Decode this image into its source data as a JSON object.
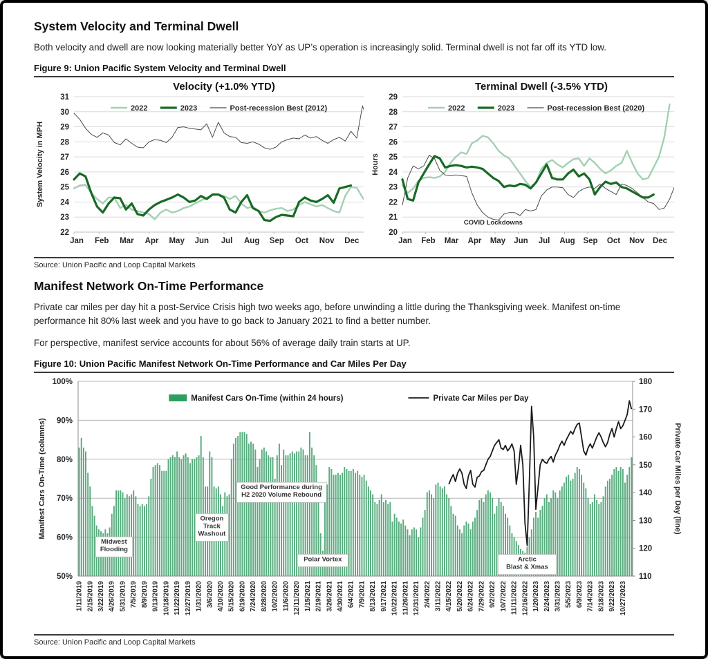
{
  "sections": {
    "velocity_dwell": {
      "title": "System Velocity and Terminal Dwell",
      "body": "Both velocity and dwell are now looking materially better YoY as UP’s operation is increasingly solid. Terminal dwell is  not far off its YTD low.",
      "figure_caption": "Figure 9: Union Pacific System Velocity and Terminal Dwell",
      "source": "Source:  Union Pacific and Loop Capital  Markets"
    },
    "manifest": {
      "title": "Manifest Network On-Time Performance",
      "body1": "Private car miles per day hit a post-Service Crisis high two weeks ago, before unwinding a little during the Thanksgiving week.  Manifest on-time performance hit 80% last week and you have to go back to January 2021 to find a better number.",
      "body2": "For perspective, manifest service accounts for about 56% of average daily train starts at UP.",
      "figure_caption": "Figure 10: Union Pacific Manifest Network On-Time Performance  and Car Miles Per Day",
      "source": "Source:  Union Pacific and Loop Capital  Markets"
    }
  },
  "colors": {
    "green_light": "#a3d0b4",
    "green_dark": "#186a24",
    "bar_green": "#58ac7e",
    "legend_green": "#2e9e60",
    "line_black": "#1a1a1a",
    "grid": "#d9d9d9",
    "axis_text": "#262626"
  },
  "chart_data": [
    {
      "type": "line",
      "title": "Velocity (+1.0% YTD)",
      "ylabel": "System Velocity in MPH",
      "ylim": [
        22,
        31
      ],
      "ytick_step": 1,
      "grid": true,
      "legend_position": "top-center",
      "x_months": [
        "Jan",
        "Feb",
        "Mar",
        "Apr",
        "May",
        "Jun",
        "Jul",
        "Aug",
        "Sep",
        "Oct",
        "Nov",
        "Dec"
      ],
      "series": [
        {
          "name": "2022",
          "color": "#a3d0b4",
          "width": 2.4,
          "values": [
            24.9,
            25.1,
            25.15,
            24.6,
            24.2,
            23.9,
            24.3,
            24.3,
            23.6,
            23.8,
            23.5,
            23.4,
            23.3,
            23.2,
            22.85,
            23.3,
            23.5,
            23.3,
            23.4,
            23.6,
            23.7,
            23.9,
            24.1,
            24.3,
            24.45,
            24.5,
            24.4,
            24.2,
            24.4,
            23.9,
            23.6,
            23.7,
            23.4,
            23.3,
            23.45,
            23.55,
            23.6,
            23.4,
            23.5,
            23.8,
            24.0,
            23.85,
            23.7,
            23.8,
            23.6,
            23.4,
            23.3,
            24.4,
            25.0,
            24.95,
            24.3,
            23.8,
            24.0
          ]
        },
        {
          "name": "2023",
          "color": "#186a24",
          "width": 3.2,
          "values": [
            25.5,
            25.9,
            25.7,
            24.6,
            23.7,
            23.3,
            23.9,
            24.3,
            24.25,
            23.5,
            23.9,
            23.2,
            23.1,
            23.5,
            23.8,
            24.0,
            24.15,
            24.3,
            24.5,
            24.3,
            24.0,
            24.1,
            24.4,
            24.2,
            24.5,
            24.5,
            24.3,
            23.5,
            23.3,
            24.0,
            24.45,
            23.6,
            23.4,
            22.8,
            22.75,
            23.0,
            23.15,
            23.1,
            23.05,
            24.0,
            24.3,
            24.1,
            24.0,
            24.2,
            24.45,
            23.95,
            24.9,
            25.0,
            25.1
          ]
        },
        {
          "name": "Post-recession Best (2012)",
          "color": "#4a4a4a",
          "width": 1,
          "values": [
            29.9,
            29.5,
            28.9,
            28.5,
            28.3,
            28.6,
            28.45,
            27.95,
            27.8,
            28.2,
            27.9,
            27.65,
            27.6,
            28.0,
            28.15,
            28.1,
            27.95,
            28.3,
            28.95,
            29.0,
            28.9,
            28.85,
            28.8,
            29.2,
            28.3,
            29.3,
            28.6,
            28.35,
            28.3,
            27.95,
            27.9,
            28.0,
            27.85,
            27.6,
            27.5,
            27.65,
            28.0,
            28.15,
            28.25,
            28.2,
            28.45,
            28.25,
            28.35,
            28.1,
            27.9,
            28.15,
            28.3,
            28.05,
            28.7,
            28.25,
            30.4,
            29.2,
            28.85
          ]
        }
      ]
    },
    {
      "type": "line",
      "title": "Terminal Dwell (-3.5% YTD)",
      "ylabel": "Hours",
      "ylim": [
        20,
        29
      ],
      "ytick_step": 1,
      "grid": true,
      "legend_position": "top-center",
      "x_months": [
        "Jan",
        "Feb",
        "Mar",
        "Apr",
        "May",
        "Jun",
        "Jul",
        "Aug",
        "Sep",
        "Oct",
        "Nov",
        "Dec"
      ],
      "annotation": {
        "text": "COVID Lockdowns",
        "x_week": 17,
        "y": 20.5
      },
      "series": [
        {
          "name": "2022",
          "color": "#a3d0b4",
          "width": 2.4,
          "values": [
            23.1,
            22.6,
            22.9,
            23.4,
            23.6,
            23.65,
            23.6,
            23.7,
            24.0,
            24.6,
            25.0,
            25.3,
            25.2,
            25.9,
            26.1,
            26.4,
            26.3,
            25.9,
            25.4,
            25.1,
            24.9,
            24.4,
            23.9,
            23.4,
            23.0,
            23.3,
            24.2,
            24.6,
            24.8,
            24.5,
            24.3,
            24.6,
            24.85,
            24.9,
            24.4,
            24.9,
            24.6,
            24.2,
            23.9,
            24.1,
            24.4,
            24.6,
            25.4,
            24.6,
            23.9,
            23.5,
            23.6,
            24.3,
            25.0,
            26.3,
            28.5
          ]
        },
        {
          "name": "2023",
          "color": "#186a24",
          "width": 3.2,
          "values": [
            23.5,
            22.2,
            22.1,
            23.3,
            23.9,
            24.5,
            25.05,
            24.9,
            24.3,
            24.4,
            24.45,
            24.4,
            24.3,
            24.35,
            24.3,
            24.2,
            23.9,
            23.6,
            23.4,
            23.0,
            23.1,
            23.05,
            23.2,
            23.15,
            22.9,
            23.3,
            23.9,
            24.5,
            23.6,
            23.5,
            23.5,
            23.9,
            24.15,
            23.7,
            23.9,
            23.5,
            22.5,
            23.0,
            23.35,
            23.2,
            23.3,
            23.0,
            22.9,
            22.7,
            22.5,
            22.3,
            22.3,
            22.5
          ]
        },
        {
          "name": "Post-recession Best (2020)",
          "color": "#4a4a4a",
          "width": 1,
          "values": [
            21.8,
            23.6,
            24.4,
            24.2,
            24.4,
            25.1,
            24.9,
            24.1,
            23.8,
            23.75,
            23.8,
            23.75,
            23.7,
            22.6,
            21.8,
            21.3,
            21.0,
            20.85,
            20.8,
            21.2,
            21.3,
            21.3,
            21.1,
            21.5,
            21.4,
            21.5,
            22.4,
            22.8,
            23.0,
            23.0,
            22.95,
            22.5,
            22.3,
            22.7,
            22.9,
            23.0,
            22.9,
            23.2,
            22.9,
            22.7,
            22.5,
            23.2,
            23.1,
            22.9,
            22.6,
            22.3,
            22.0,
            21.9,
            21.5,
            21.6,
            22.2,
            23.1,
            24.8
          ]
        }
      ]
    },
    {
      "type": "bar+line",
      "ylabel_left": "Manifest Cars On-Time (columns)",
      "ylabel_right": "Private Car Miles per Day (line)",
      "ylim_left": [
        50,
        100
      ],
      "ytick_step_left": 10,
      "ylim_right": [
        110,
        180
      ],
      "ytick_step_right": 10,
      "x_tick_every": 5,
      "x_tick_labels": [
        "1/11/2019",
        "2/15/2019",
        "3/22/2019",
        "4/26/2019",
        "5/31/2019",
        "7/5/2019",
        "8/9/2019",
        "9/13/2019",
        "10/18/2019",
        "11/22/2019",
        "12/27/2019",
        "1/31/2020",
        "3/6/2020",
        "4/10/2020",
        "5/15/2020",
        "6/19/2020",
        "7/24/2020",
        "8/28/2020",
        "10/2/2020",
        "11/6/2020",
        "12/11/2020",
        "1/15/2021",
        "2/19/2021",
        "3/26/2021",
        "4/30/2021",
        "6/4/2021",
        "7/9/2021",
        "8/13/2021",
        "9/17/2021",
        "10/22/2021",
        "11/26/2021",
        "12/31/2021",
        "2/4/2022",
        "3/11/2022",
        "4/15/2022",
        "5/20/2022",
        "6/24/2022",
        "7/29/2022",
        "9/2/2022",
        "10/7/2022",
        "11/11/2022",
        "12/16/2022",
        "1/20/2023",
        "2/24/2023",
        "3/31/2023",
        "5/5/2023",
        "6/9/2023",
        "7/14/2023",
        "8/18/2023",
        "9/22/2023",
        "10/27/2023"
      ],
      "bars": {
        "name": "Manifest Cars On-Time (within 24 hours)",
        "color": "#58ac7e",
        "legend_color": "#2e9e60",
        "values": [
          83,
          85.5,
          83,
          82,
          76.5,
          73,
          68,
          65.5,
          63,
          62,
          61.5,
          61,
          62,
          61,
          62.5,
          66,
          68,
          72,
          72,
          72,
          71.5,
          70,
          71,
          70.5,
          71,
          72,
          70.5,
          68.5,
          68,
          68.5,
          68,
          68.5,
          70.5,
          75,
          78,
          78.5,
          79,
          78.5,
          77,
          77,
          77,
          80,
          80.5,
          81,
          80.5,
          82,
          80.5,
          80,
          81,
          81.5,
          80.5,
          79,
          80,
          80,
          80.5,
          81,
          86,
          80.5,
          73,
          73,
          82,
          80.5,
          73,
          72.5,
          73,
          71,
          68,
          71.5,
          70.5,
          71,
          80,
          84,
          85.5,
          86,
          87,
          87,
          87,
          86.5,
          84,
          84.5,
          84,
          82.5,
          78,
          80,
          82.5,
          83,
          82,
          81,
          80.5,
          80.5,
          75,
          81,
          84,
          78.5,
          82.5,
          81,
          81,
          81.5,
          82,
          81.5,
          82,
          82,
          83,
          82.5,
          81,
          81,
          87,
          83,
          81,
          78.5,
          74,
          61,
          56.5,
          73,
          73.5,
          78,
          77.5,
          76,
          76,
          76.5,
          76,
          76.5,
          78,
          77.5,
          77,
          77,
          77.5,
          76.5,
          77,
          76,
          75.5,
          76,
          74.5,
          73,
          72,
          71,
          69,
          68.5,
          69.5,
          71,
          69,
          69.5,
          68.5,
          69,
          64,
          66,
          65,
          64,
          63.5,
          64.5,
          63,
          62,
          60.5,
          62,
          62.5,
          62,
          60,
          62.5,
          65,
          67,
          71.5,
          72,
          71,
          70,
          73.5,
          74,
          73,
          72.5,
          73,
          71,
          70,
          68,
          66,
          65.5,
          63,
          62,
          61,
          63,
          64,
          63.5,
          62,
          64,
          65,
          67,
          69.5,
          70,
          69,
          71,
          72,
          71.5,
          70,
          66,
          68,
          70,
          69,
          68,
          66,
          65,
          63,
          61,
          60,
          59,
          58,
          57,
          56.5,
          56,
          57.5,
          60,
          62,
          65,
          66.5,
          65,
          67,
          68,
          70,
          71,
          69,
          70,
          72,
          71.5,
          70,
          72,
          73,
          74,
          75.5,
          76,
          74.5,
          75,
          76.5,
          78,
          77.5,
          76,
          74,
          72.5,
          70,
          68.5,
          69,
          71,
          69.5,
          68.5,
          69,
          70.5,
          73,
          74.5,
          75,
          76,
          77.5,
          78,
          77,
          78,
          77.5,
          74,
          76,
          78,
          80.5
        ]
      },
      "line": {
        "name": "Private Car Miles per Day",
        "color": "#1a1a1a",
        "start_index": 170,
        "values": [
          143,
          145,
          146.5,
          144,
          147,
          148.5,
          147,
          143,
          141.5,
          146,
          148,
          143,
          142,
          145.5,
          146,
          147.5,
          148,
          150,
          152,
          153,
          155,
          157,
          158,
          159,
          156,
          155.5,
          157,
          155,
          156,
          157.5,
          155,
          143,
          149,
          157,
          150,
          129,
          121,
          144,
          171,
          160,
          134,
          142,
          150,
          152,
          151,
          150.5,
          152,
          153,
          151,
          153.5,
          155,
          157,
          158.5,
          157,
          159,
          160.5,
          162,
          161,
          163,
          164.5,
          165,
          160,
          155,
          153.5,
          156,
          157.5,
          156,
          158,
          160,
          161.5,
          160,
          158,
          156.5,
          158,
          161,
          163,
          160,
          163,
          165.5,
          163,
          164,
          166,
          168,
          173,
          170
        ]
      },
      "annotations": [
        {
          "x_index": 16,
          "y_pct": 57.5,
          "lines": [
            "Midwest",
            "Flooding"
          ]
        },
        {
          "x_index": 61,
          "y_pct": 62.5,
          "lines": [
            "Oregon",
            "Track",
            "Washout"
          ]
        },
        {
          "x_index": 93,
          "y_pct": 71.5,
          "lines": [
            "Good Performance during",
            "H2 2020 Volume Rebound"
          ]
        },
        {
          "x_index": 112,
          "y_pct": 54,
          "lines": [
            "Polar Vortex"
          ]
        },
        {
          "x_index": 206,
          "y_pct": 53,
          "lines": [
            "Arctic",
            "Blast  &  Xmas"
          ]
        }
      ]
    }
  ]
}
